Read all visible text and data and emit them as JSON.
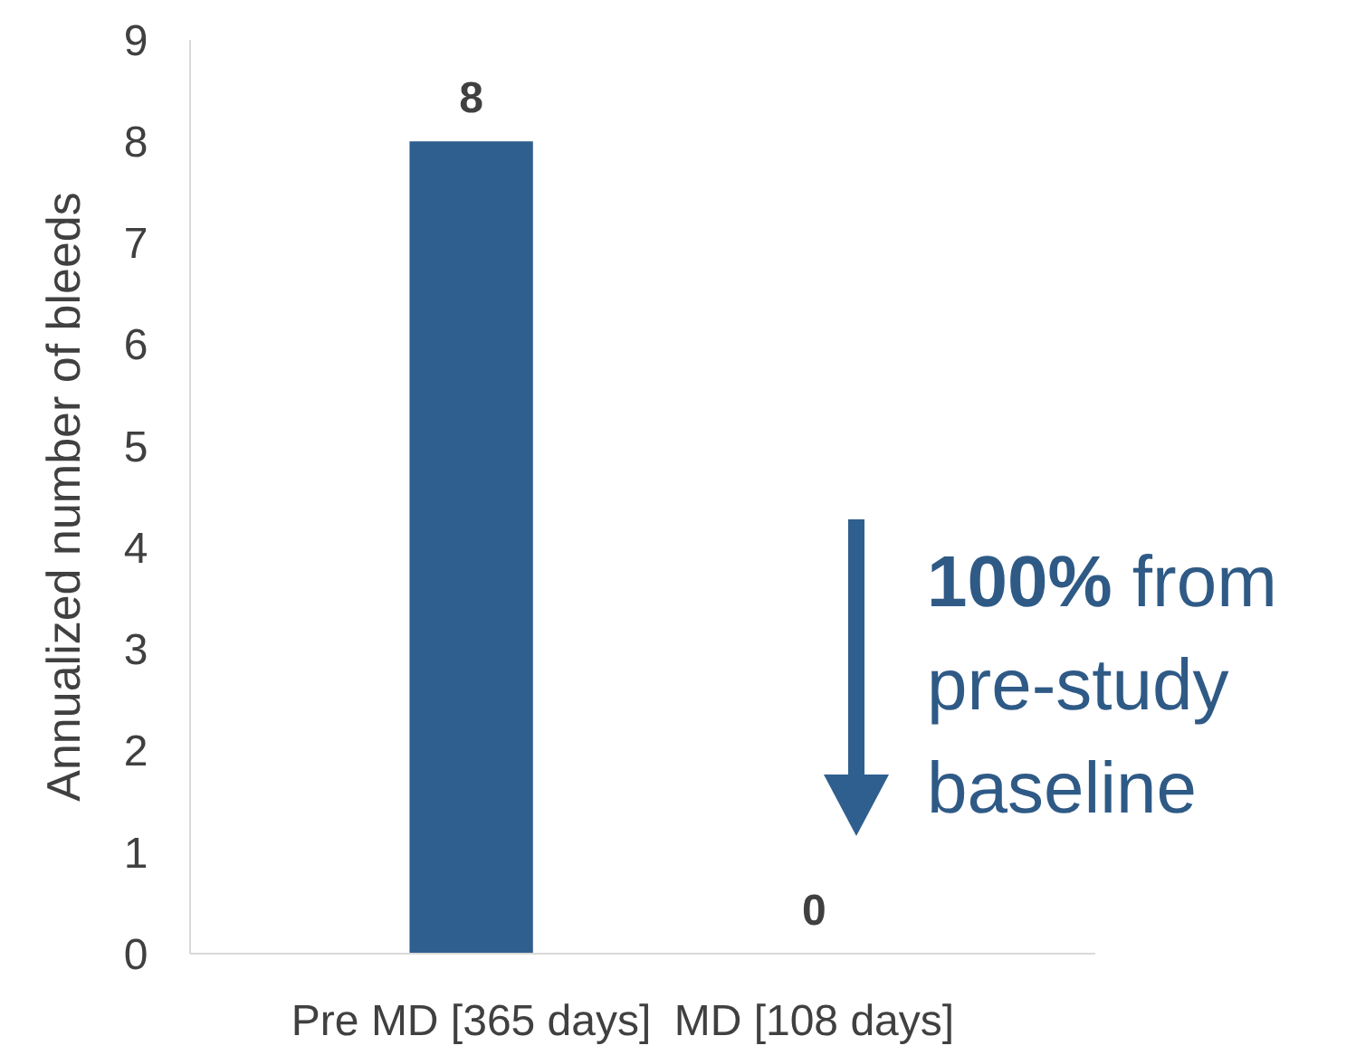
{
  "chart_data": {
    "type": "bar",
    "ylabel": "Annualized number of bleeds",
    "categories": [
      "Pre MD [365 days]",
      "MD [108 days]"
    ],
    "values": [
      8,
      0
    ],
    "color": "#2f5f8f",
    "ylim": [
      0,
      9
    ],
    "yticks": [
      0,
      1,
      2,
      3,
      4,
      5,
      6,
      7,
      8,
      9
    ],
    "grid": false,
    "data_labels": true,
    "annotations": [
      "100% from pre-study baseline"
    ]
  }
}
